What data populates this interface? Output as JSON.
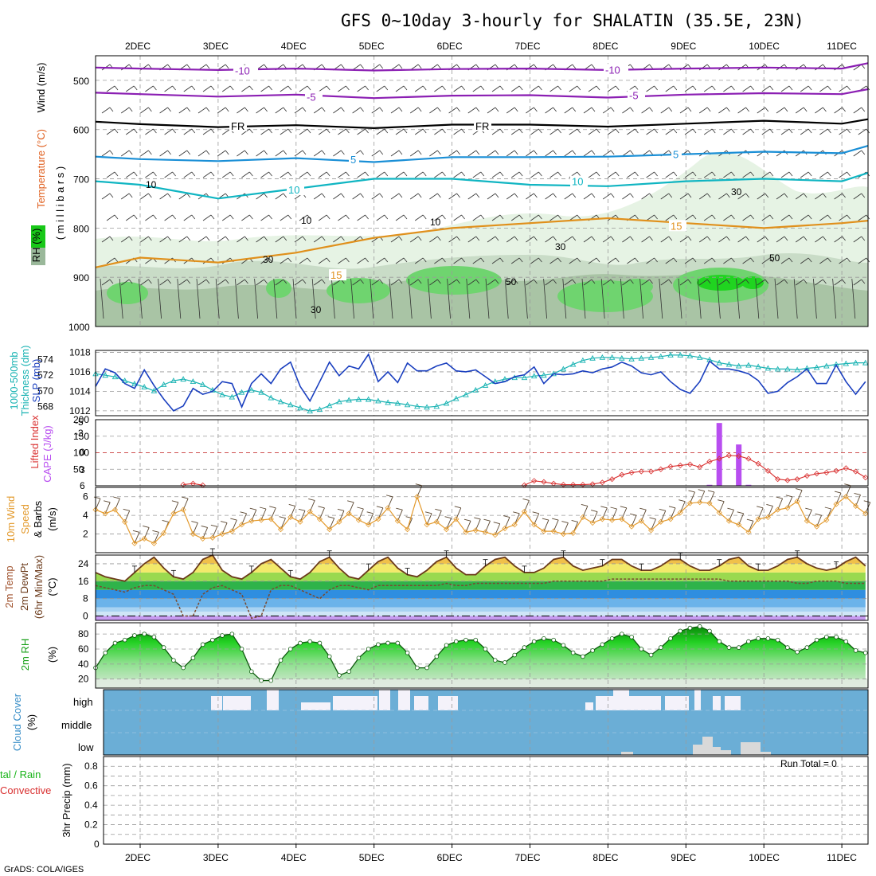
{
  "title": "GFS 0~10day 3-hourly for SHALATIN (35.5E, 23N)",
  "footer": "GrADS: COLA/IGES",
  "run_total": "Run Total = 0",
  "dates": [
    "2DEC",
    "3DEC",
    "4DEC",
    "5DEC",
    "6DEC",
    "7DEC",
    "8DEC",
    "9DEC",
    "10DEC",
    "11DEC"
  ],
  "labels": {
    "wind": "Wind (m/s)",
    "temperature": "Temperature (°C)",
    "rh_upper": "RH (%)",
    "millibars": "( m i l l i b a r s )",
    "thickness1": "1000-500mb",
    "thickness2": "Thickness (dm)",
    "slp": "SLP (mb)",
    "lifted": "Lifted Index",
    "cape": "CAPE (J/kg)",
    "wind10_1": "10m Wind",
    "wind10_2": "Speed",
    "wind10_3": "& Barbs",
    "wind10_unit": "(m/s)",
    "t2m_1": "2m Temp",
    "t2m_2": "2m DewPt",
    "t2m_3": "(6hr Min/Max)",
    "t2m_unit": "(°C)",
    "rh2m": "2m RH",
    "rh2m_unit": "(%)",
    "cloud": "Cloud Cover",
    "cloud_unit": "(%)",
    "cloud_levels": [
      "high",
      "middle",
      "low"
    ],
    "precip1": "tal / Rain",
    "precip2": "Convective",
    "precip3": "3hr Precip (mm)"
  },
  "colors": {
    "temp_cold": "#8b1fb3",
    "temp_fr": "#000000",
    "temp_5": "#1a8fd6",
    "temp_10": "#10b5c2",
    "temp_15": "#e0901c",
    "slp": "#1a3fbf",
    "thickness": "#1ab3b3",
    "lifted": "#d93030",
    "cape": "#b84ef0",
    "wind10": "#e39a2d",
    "barb": "#5a4630",
    "rh_green": "#18c818",
    "cloud_bg": "#6baed6",
    "cloud_clear": "#f4f2fa",
    "precip_green": "#18b418"
  },
  "chart_data": [
    {
      "type": "line",
      "panel": "upper-air",
      "ylabel": "( m i l l i b a r s )",
      "y_ticks": [
        500,
        600,
        700,
        800,
        900,
        1000
      ],
      "contour_labels": [
        "-10",
        "-5",
        "FR",
        "5",
        "10",
        "15",
        "10",
        "30",
        "50"
      ],
      "series": [
        {
          "name": "-10",
          "level_mb": [
            474,
            476,
            479,
            476,
            480,
            477,
            476,
            479,
            476,
            474,
            476,
            465
          ]
        },
        {
          "name": "-5",
          "level_mb": [
            525,
            528,
            533,
            529,
            536,
            531,
            530,
            535,
            529,
            526,
            528,
            518
          ]
        },
        {
          "name": "FR",
          "level_mb": [
            584,
            589,
            595,
            591,
            597,
            590,
            590,
            594,
            588,
            582,
            588,
            579
          ]
        },
        {
          "name": "5",
          "level_mb": [
            655,
            660,
            664,
            658,
            666,
            656,
            656,
            655,
            650,
            645,
            648,
            633
          ]
        },
        {
          "name": "10",
          "level_mb": [
            705,
            712,
            740,
            720,
            700,
            700,
            712,
            715,
            705,
            700,
            705,
            688
          ]
        },
        {
          "name": "15",
          "level_mb": [
            880,
            860,
            870,
            850,
            820,
            800,
            790,
            780,
            790,
            800,
            790,
            785
          ]
        }
      ],
      "x": [
        "1.5DEC",
        "2DEC",
        "3DEC",
        "4DEC",
        "5DEC",
        "6DEC",
        "7DEC",
        "8DEC",
        "9DEC",
        "10DEC",
        "11DEC",
        "11.3DEC"
      ]
    },
    {
      "type": "line",
      "panel": "slp-thickness",
      "y_left_ticks": [
        568,
        570,
        572,
        574
      ],
      "y_right_ticks": [
        1012,
        1014,
        1016,
        1018
      ],
      "series": [
        {
          "name": "SLP (mb)",
          "values": [
            1014.5,
            1016.3,
            1015.9,
            1014.8,
            1014.3,
            1016.2,
            1014.6,
            1013.2,
            1012.0,
            1012.5,
            1014.3,
            1013.7,
            1014.0,
            1015.0,
            1014.8,
            1012.4,
            1014.8,
            1015.8,
            1014.8,
            1016.3,
            1017.0,
            1014.5,
            1013.0,
            1015.0,
            1017.0,
            1015.6,
            1016.6,
            1016.3,
            1017.8,
            1015.0,
            1016.0,
            1014.9,
            1016.9,
            1016.1,
            1016.1,
            1016.6,
            1016.9,
            1016.1,
            1016.0,
            1016.2,
            1015.5,
            1014.8,
            1015.0,
            1015.5,
            1015.7,
            1016.5,
            1014.8,
            1015.8,
            1015.7,
            1015.8,
            1016.1,
            1015.9,
            1016.3,
            1016.5,
            1017.0,
            1016.6,
            1015.9,
            1015.7,
            1016.0,
            1015.0,
            1014.2,
            1013.8,
            1015.0,
            1017.1,
            1016.3,
            1016.3,
            1016.1,
            1015.8,
            1015.1,
            1013.8,
            1014.0,
            1014.9,
            1015.5,
            1016.3,
            1014.8,
            1014.8,
            1016.7,
            1015.0,
            1013.7,
            1015.0,
            1014.0,
            1014.5,
            1015.3,
            1016.0
          ]
        },
        {
          "name": "1000-500mb Thickness (dm)",
          "values": [
            572.2,
            572.0,
            571.8,
            571.3,
            570.9,
            570.5,
            570.0,
            570.8,
            571.3,
            571.5,
            571.2,
            570.8,
            570.1,
            569.5,
            569.2,
            569.8,
            570.1,
            569.8,
            569.1,
            568.6,
            568.2,
            567.8,
            567.4,
            567.6,
            568.1,
            568.6,
            568.8,
            568.9,
            568.9,
            568.7,
            568.5,
            568.4,
            568.2,
            568.0,
            567.9,
            568.0,
            568.4,
            569.0,
            569.5,
            570.1,
            570.7,
            571.2,
            571.5,
            571.7,
            571.7,
            571.9,
            572.0,
            572.2,
            572.8,
            573.4,
            573.9,
            574.2,
            574.3,
            574.3,
            574.2,
            574.1,
            574.2,
            574.3,
            574.4,
            574.6,
            574.6,
            574.5,
            574.3,
            574.0,
            573.6,
            573.4,
            573.2,
            573.3,
            573.1,
            572.9,
            572.8,
            572.8,
            572.7,
            572.9,
            573.0,
            573.2,
            573.4,
            573.5,
            573.6,
            573.6,
            573.5,
            573.6,
            573.7,
            573.8
          ]
        }
      ]
    },
    {
      "type": "line",
      "panel": "lifted-cape",
      "y_left_ticks": [
        -5,
        -3,
        0,
        3,
        6
      ],
      "y_right_ticks": [
        50,
        100,
        150,
        200
      ],
      "series": [
        {
          "name": "Lifted Index",
          "values": [
            null,
            null,
            null,
            null,
            null,
            null,
            null,
            null,
            null,
            5.8,
            5.6,
            5.9,
            null,
            null,
            null,
            null,
            null,
            null,
            null,
            null,
            null,
            null,
            null,
            null,
            null,
            null,
            null,
            null,
            null,
            null,
            null,
            null,
            null,
            null,
            null,
            null,
            null,
            null,
            null,
            null,
            null,
            null,
            null,
            null,
            5.9,
            5.1,
            5.3,
            5.6,
            5.8,
            5.8,
            5.8,
            5.7,
            5.4,
            4.8,
            4.0,
            3.6,
            3.4,
            3.4,
            3.0,
            2.5,
            2.3,
            2.1,
            2.6,
            1.6,
            1.1,
            0.5,
            0.6,
            1.1,
            2.0,
            3.3,
            4.8,
            5.0,
            4.8,
            4.2,
            3.8,
            3.6,
            3.3,
            2.8,
            3.4,
            4.5,
            5.8,
            5.9,
            6.0,
            6.0
          ]
        },
        {
          "name": "CAPE (J/kg)",
          "values": [
            0,
            0,
            0,
            0,
            0,
            0,
            0,
            0,
            0,
            0,
            0,
            0,
            0,
            0,
            0,
            0,
            0,
            0,
            0,
            0,
            0,
            0,
            0,
            0,
            0,
            0,
            0,
            0,
            0,
            0,
            0,
            0,
            0,
            0,
            0,
            0,
            0,
            0,
            0,
            0,
            0,
            0,
            0,
            0,
            0,
            0,
            0,
            0,
            0,
            0,
            0,
            0,
            0,
            0,
            0,
            0,
            0,
            0,
            0,
            0,
            0,
            0,
            0,
            3,
            190,
            0,
            125,
            3,
            0,
            0,
            0,
            0,
            0,
            0,
            0,
            0,
            0,
            0,
            0,
            0,
            0,
            0,
            0,
            0
          ]
        }
      ]
    },
    {
      "type": "line",
      "panel": "wind10m",
      "y_ticks": [
        2,
        4,
        6
      ],
      "series": [
        {
          "name": "10m Wind Speed",
          "values": [
            4.6,
            4.2,
            4.6,
            3.3,
            1.0,
            1.5,
            1.0,
            2.1,
            4.2,
            4.6,
            2.0,
            1.5,
            1.6,
            2.0,
            2.3,
            3.0,
            3.4,
            3.5,
            3.6,
            2.5,
            3.8,
            3.3,
            4.4,
            3.6,
            2.5,
            3.3,
            4.2,
            3.5,
            3.0,
            3.6,
            4.8,
            3.4,
            2.5,
            6.0,
            3.0,
            3.3,
            2.5,
            3.6,
            2.2,
            2.4,
            2.2,
            1.9,
            2.6,
            3.0,
            4.4,
            3.0,
            2.3,
            2.3,
            2.0,
            2.1,
            3.8,
            3.2,
            3.6,
            3.5,
            3.6,
            2.8,
            3.4,
            2.4,
            3.3,
            3.6,
            4.3,
            5.3,
            5.4,
            5.3,
            4.3,
            3.4,
            3.0,
            2.2,
            3.6,
            3.8,
            4.6,
            4.8,
            5.5,
            3.4,
            2.8,
            3.5,
            5.2,
            6.0,
            5.0,
            4.2,
            2.2,
            1.6,
            2.2,
            2.5
          ]
        }
      ]
    },
    {
      "type": "area",
      "panel": "temp-dewpoint",
      "y_ticks": [
        0,
        8,
        16,
        24
      ],
      "series": [
        {
          "name": "2m Temp",
          "values": [
            20,
            18,
            17,
            16,
            20,
            24,
            27,
            22,
            18,
            17,
            20,
            26,
            28,
            21,
            18,
            17,
            20,
            24,
            26,
            22,
            18,
            17,
            20,
            25,
            27,
            22,
            18,
            17,
            21,
            25,
            27,
            22,
            19,
            18,
            21,
            25,
            27,
            22,
            19,
            19,
            23,
            26,
            27,
            23,
            20,
            20,
            22,
            26,
            27,
            23,
            21,
            22,
            23,
            26,
            26,
            23,
            21,
            21,
            23,
            26,
            26,
            23,
            21,
            21,
            23,
            26,
            27,
            23,
            21,
            21,
            23,
            26,
            27,
            24,
            22,
            21,
            22,
            25,
            27,
            23,
            21,
            21,
            20,
            22
          ]
        },
        {
          "name": "2m DewPt",
          "values": [
            14,
            13,
            12,
            11,
            13,
            14,
            14,
            12,
            10,
            0,
            0,
            10,
            13,
            14,
            12,
            10,
            -1,
            0,
            12,
            14,
            14,
            12,
            10,
            8,
            12,
            14,
            14,
            13,
            12,
            14,
            14,
            14,
            14,
            14,
            14,
            14,
            15,
            14,
            14,
            15,
            15,
            15,
            15,
            15,
            15,
            15,
            15,
            16,
            16,
            16,
            16,
            16,
            16,
            17,
            17,
            17,
            17,
            17,
            17,
            17,
            17,
            17,
            17,
            17,
            17,
            16,
            16,
            16,
            16,
            16,
            16,
            16,
            15,
            15,
            16,
            16,
            16,
            15,
            15,
            15,
            15,
            15,
            15,
            15
          ]
        }
      ]
    },
    {
      "type": "area",
      "panel": "rh2m",
      "y_ticks": [
        20,
        40,
        60,
        80
      ],
      "series": [
        {
          "name": "2m RH",
          "values": [
            35,
            55,
            68,
            72,
            78,
            80,
            76,
            62,
            45,
            35,
            48,
            66,
            72,
            78,
            80,
            60,
            30,
            18,
            18,
            45,
            60,
            68,
            70,
            68,
            50,
            25,
            30,
            48,
            60,
            66,
            68,
            68,
            55,
            35,
            35,
            50,
            65,
            70,
            72,
            72,
            60,
            45,
            42,
            52,
            62,
            70,
            74,
            72,
            65,
            55,
            50,
            58,
            66,
            74,
            80,
            76,
            60,
            52,
            62,
            74,
            84,
            88,
            90,
            84,
            70,
            62,
            62,
            70,
            74,
            74,
            72,
            62,
            56,
            62,
            72,
            76,
            76,
            70,
            58,
            55,
            62,
            72,
            78,
            80
          ]
        }
      ]
    },
    {
      "type": "bar",
      "panel": "cloud-cover",
      "y_categories": [
        "high",
        "middle",
        "low"
      ]
    },
    {
      "type": "bar",
      "panel": "precip",
      "y_ticks": [
        0,
        0.2,
        0.4,
        0.6,
        0.8
      ],
      "values": [
        0
      ]
    }
  ]
}
